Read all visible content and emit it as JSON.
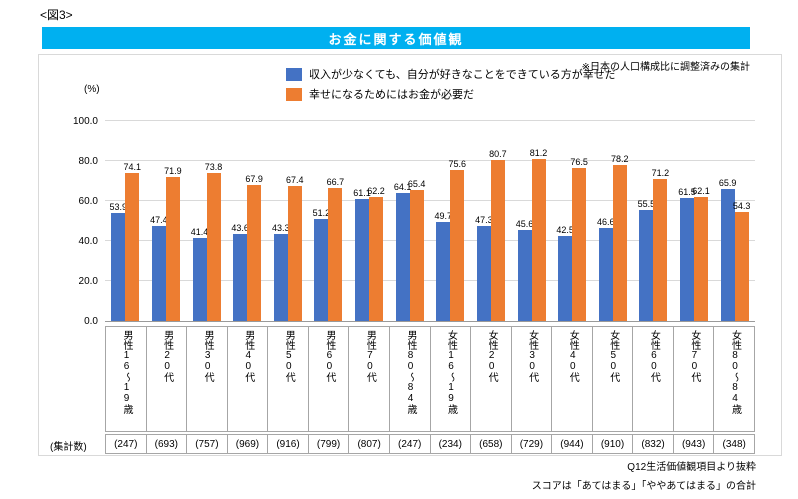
{
  "figure_label": "<図3>",
  "banner": {
    "title": "お金に関する価値観"
  },
  "note": "※日本の人口構成比に調整済みの集計",
  "unit_label": "(%)",
  "counts_label": "(集計数)",
  "footnotes": {
    "line1": "Q12生活価値観項目より抜粋",
    "line2": "スコアは「あてはまる」「ややあてはまる」の合計"
  },
  "colors": {
    "banner_bg": "#00b0f0",
    "banner_text": "#ffffff",
    "grid": "#d9d9d9",
    "axis": "#9a9a9a",
    "box_border": "#a6a6a6"
  },
  "chart_data": {
    "type": "bar",
    "title": "お金に関する価値観",
    "categories": [
      "男性16〜19歳",
      "男性20代",
      "男性30代",
      "男性40代",
      "男性50代",
      "男性60代",
      "男性70代",
      "男性80〜84歳",
      "女性16〜19歳",
      "女性20代",
      "女性30代",
      "女性40代",
      "女性50代",
      "女性60代",
      "女性70代",
      "女性80〜84歳"
    ],
    "series": [
      {
        "name": "収入が少なくても、自分が好きなことをできている方が幸せだ",
        "color": "#4472c4",
        "values": [
          53.9,
          47.4,
          41.4,
          43.6,
          43.3,
          51.2,
          61.1,
          64.1,
          49.7,
          47.3,
          45.6,
          42.5,
          46.6,
          55.5,
          61.5,
          65.9
        ]
      },
      {
        "name": "幸せになるためにはお金が必要だ",
        "color": "#ed7d31",
        "values": [
          74.1,
          71.9,
          73.8,
          67.9,
          67.4,
          66.7,
          62.2,
          65.4,
          75.6,
          80.7,
          81.2,
          76.5,
          78.2,
          71.2,
          62.1,
          54.3
        ]
      }
    ],
    "counts": [
      "(247)",
      "(693)",
      "(757)",
      "(969)",
      "(916)",
      "(799)",
      "(807)",
      "(247)",
      "(234)",
      "(658)",
      "(729)",
      "(944)",
      "(910)",
      "(832)",
      "(943)",
      "(348)"
    ],
    "xlabel": "",
    "ylabel": "(%)",
    "ylim": [
      0,
      100
    ],
    "yticks": [
      0,
      20,
      40,
      60,
      80,
      100
    ],
    "grid": true,
    "legend_position": "top-center"
  }
}
